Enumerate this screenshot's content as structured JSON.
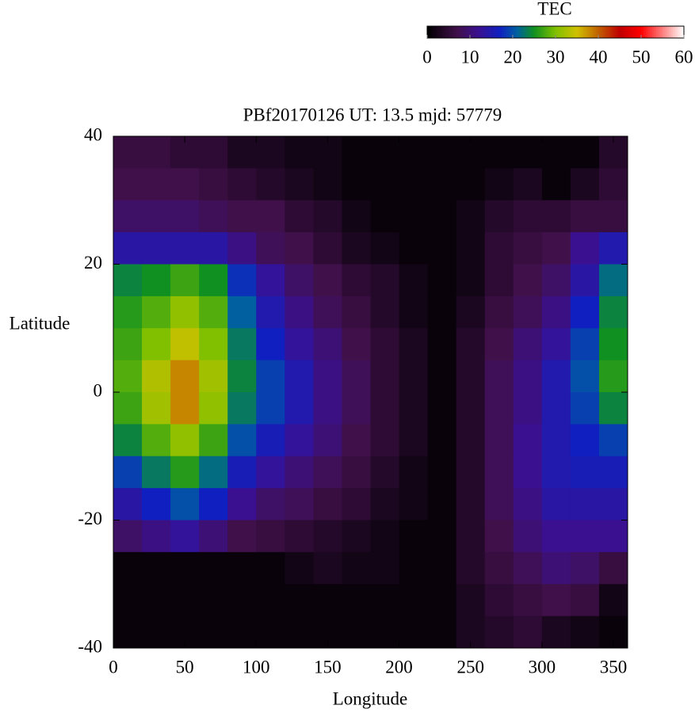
{
  "chart_data": {
    "type": "heatmap",
    "title": "PBf20170126  UT: 13.5  mjd: 57779",
    "xlabel": "Longitude",
    "ylabel": "Latitude",
    "colorbar_label": "TEC",
    "x": [
      10,
      30,
      50,
      70,
      90,
      110,
      130,
      150,
      170,
      190,
      210,
      230,
      250,
      270,
      290,
      310,
      330,
      350
    ],
    "y": [
      37.5,
      32.5,
      27.5,
      22.5,
      17.5,
      12.5,
      7.5,
      2.5,
      -2.5,
      -7.5,
      -12.5,
      -17.5,
      -22.5,
      -27.5,
      -32.5,
      -37.5
    ],
    "values": [
      [
        6,
        6,
        5,
        5,
        3,
        3,
        2,
        2,
        1,
        1,
        1,
        1,
        1,
        1,
        1,
        1,
        1,
        4
      ],
      [
        7,
        7,
        7,
        6,
        5,
        4,
        3,
        2,
        1,
        1,
        1,
        1,
        1,
        2,
        3,
        1,
        3,
        5
      ],
      [
        9,
        9,
        9,
        8,
        7,
        7,
        5,
        4,
        2,
        1,
        1,
        1,
        2,
        4,
        5,
        5,
        6,
        6
      ],
      [
        14,
        14,
        14,
        14,
        11,
        8,
        7,
        5,
        3,
        2,
        1,
        1,
        2,
        5,
        6,
        7,
        12,
        15
      ],
      [
        24,
        25,
        27,
        25,
        18,
        13,
        9,
        7,
        5,
        4,
        2,
        1,
        2,
        5,
        7,
        9,
        14,
        22
      ],
      [
        26,
        28,
        31,
        28,
        21,
        15,
        11,
        8,
        6,
        4,
        2,
        1,
        3,
        6,
        8,
        11,
        17,
        24
      ],
      [
        27,
        30,
        34,
        30,
        23,
        17,
        13,
        10,
        7,
        5,
        3,
        1,
        4,
        7,
        10,
        13,
        19,
        25
      ],
      [
        28,
        33,
        38,
        32,
        24,
        19,
        15,
        11,
        8,
        5,
        3,
        1,
        4,
        8,
        11,
        15,
        20,
        26
      ],
      [
        27,
        32,
        38,
        31,
        23,
        19,
        15,
        11,
        8,
        5,
        3,
        1,
        4,
        8,
        11,
        15,
        19,
        24
      ],
      [
        24,
        28,
        31,
        27,
        20,
        16,
        13,
        10,
        7,
        5,
        3,
        1,
        4,
        8,
        12,
        15,
        17,
        19
      ],
      [
        19,
        23,
        26,
        22,
        16,
        13,
        10,
        8,
        6,
        4,
        2,
        1,
        4,
        8,
        12,
        15,
        16,
        16
      ],
      [
        14,
        17,
        20,
        17,
        12,
        9,
        8,
        6,
        5,
        3,
        2,
        1,
        4,
        8,
        11,
        14,
        14,
        14
      ],
      [
        9,
        11,
        13,
        10,
        7,
        6,
        5,
        4,
        3,
        2,
        1,
        1,
        4,
        7,
        10,
        12,
        12,
        12
      ],
      [
        1,
        1,
        1,
        1,
        1,
        1,
        2,
        3,
        2,
        2,
        1,
        1,
        4,
        6,
        8,
        10,
        9,
        6
      ],
      [
        1,
        1,
        1,
        1,
        1,
        1,
        1,
        1,
        1,
        1,
        1,
        1,
        3,
        5,
        6,
        7,
        6,
        2
      ],
      [
        1,
        1,
        1,
        1,
        1,
        1,
        1,
        1,
        1,
        1,
        1,
        1,
        3,
        4,
        5,
        3,
        2,
        1
      ]
    ],
    "xlim": [
      0,
      360
    ],
    "xticks": [
      0,
      50,
      100,
      150,
      200,
      250,
      300,
      350
    ],
    "ylim": [
      -40,
      40
    ],
    "yticks": [
      -40,
      -20,
      0,
      20,
      40
    ],
    "clim": [
      0,
      60
    ],
    "cticks": [
      0,
      10,
      20,
      30,
      40,
      50,
      60
    ],
    "colormap": [
      [
        0,
        "#000000"
      ],
      [
        7,
        "#40104a"
      ],
      [
        12,
        "#3a1090"
      ],
      [
        17,
        "#1020c0"
      ],
      [
        21,
        "#0060a0"
      ],
      [
        25,
        "#109020"
      ],
      [
        30,
        "#80c000"
      ],
      [
        35,
        "#d0c000"
      ],
      [
        40,
        "#c06000"
      ],
      [
        45,
        "#c00000"
      ],
      [
        50,
        "#ff0000"
      ],
      [
        60,
        "#ffffff"
      ]
    ]
  }
}
